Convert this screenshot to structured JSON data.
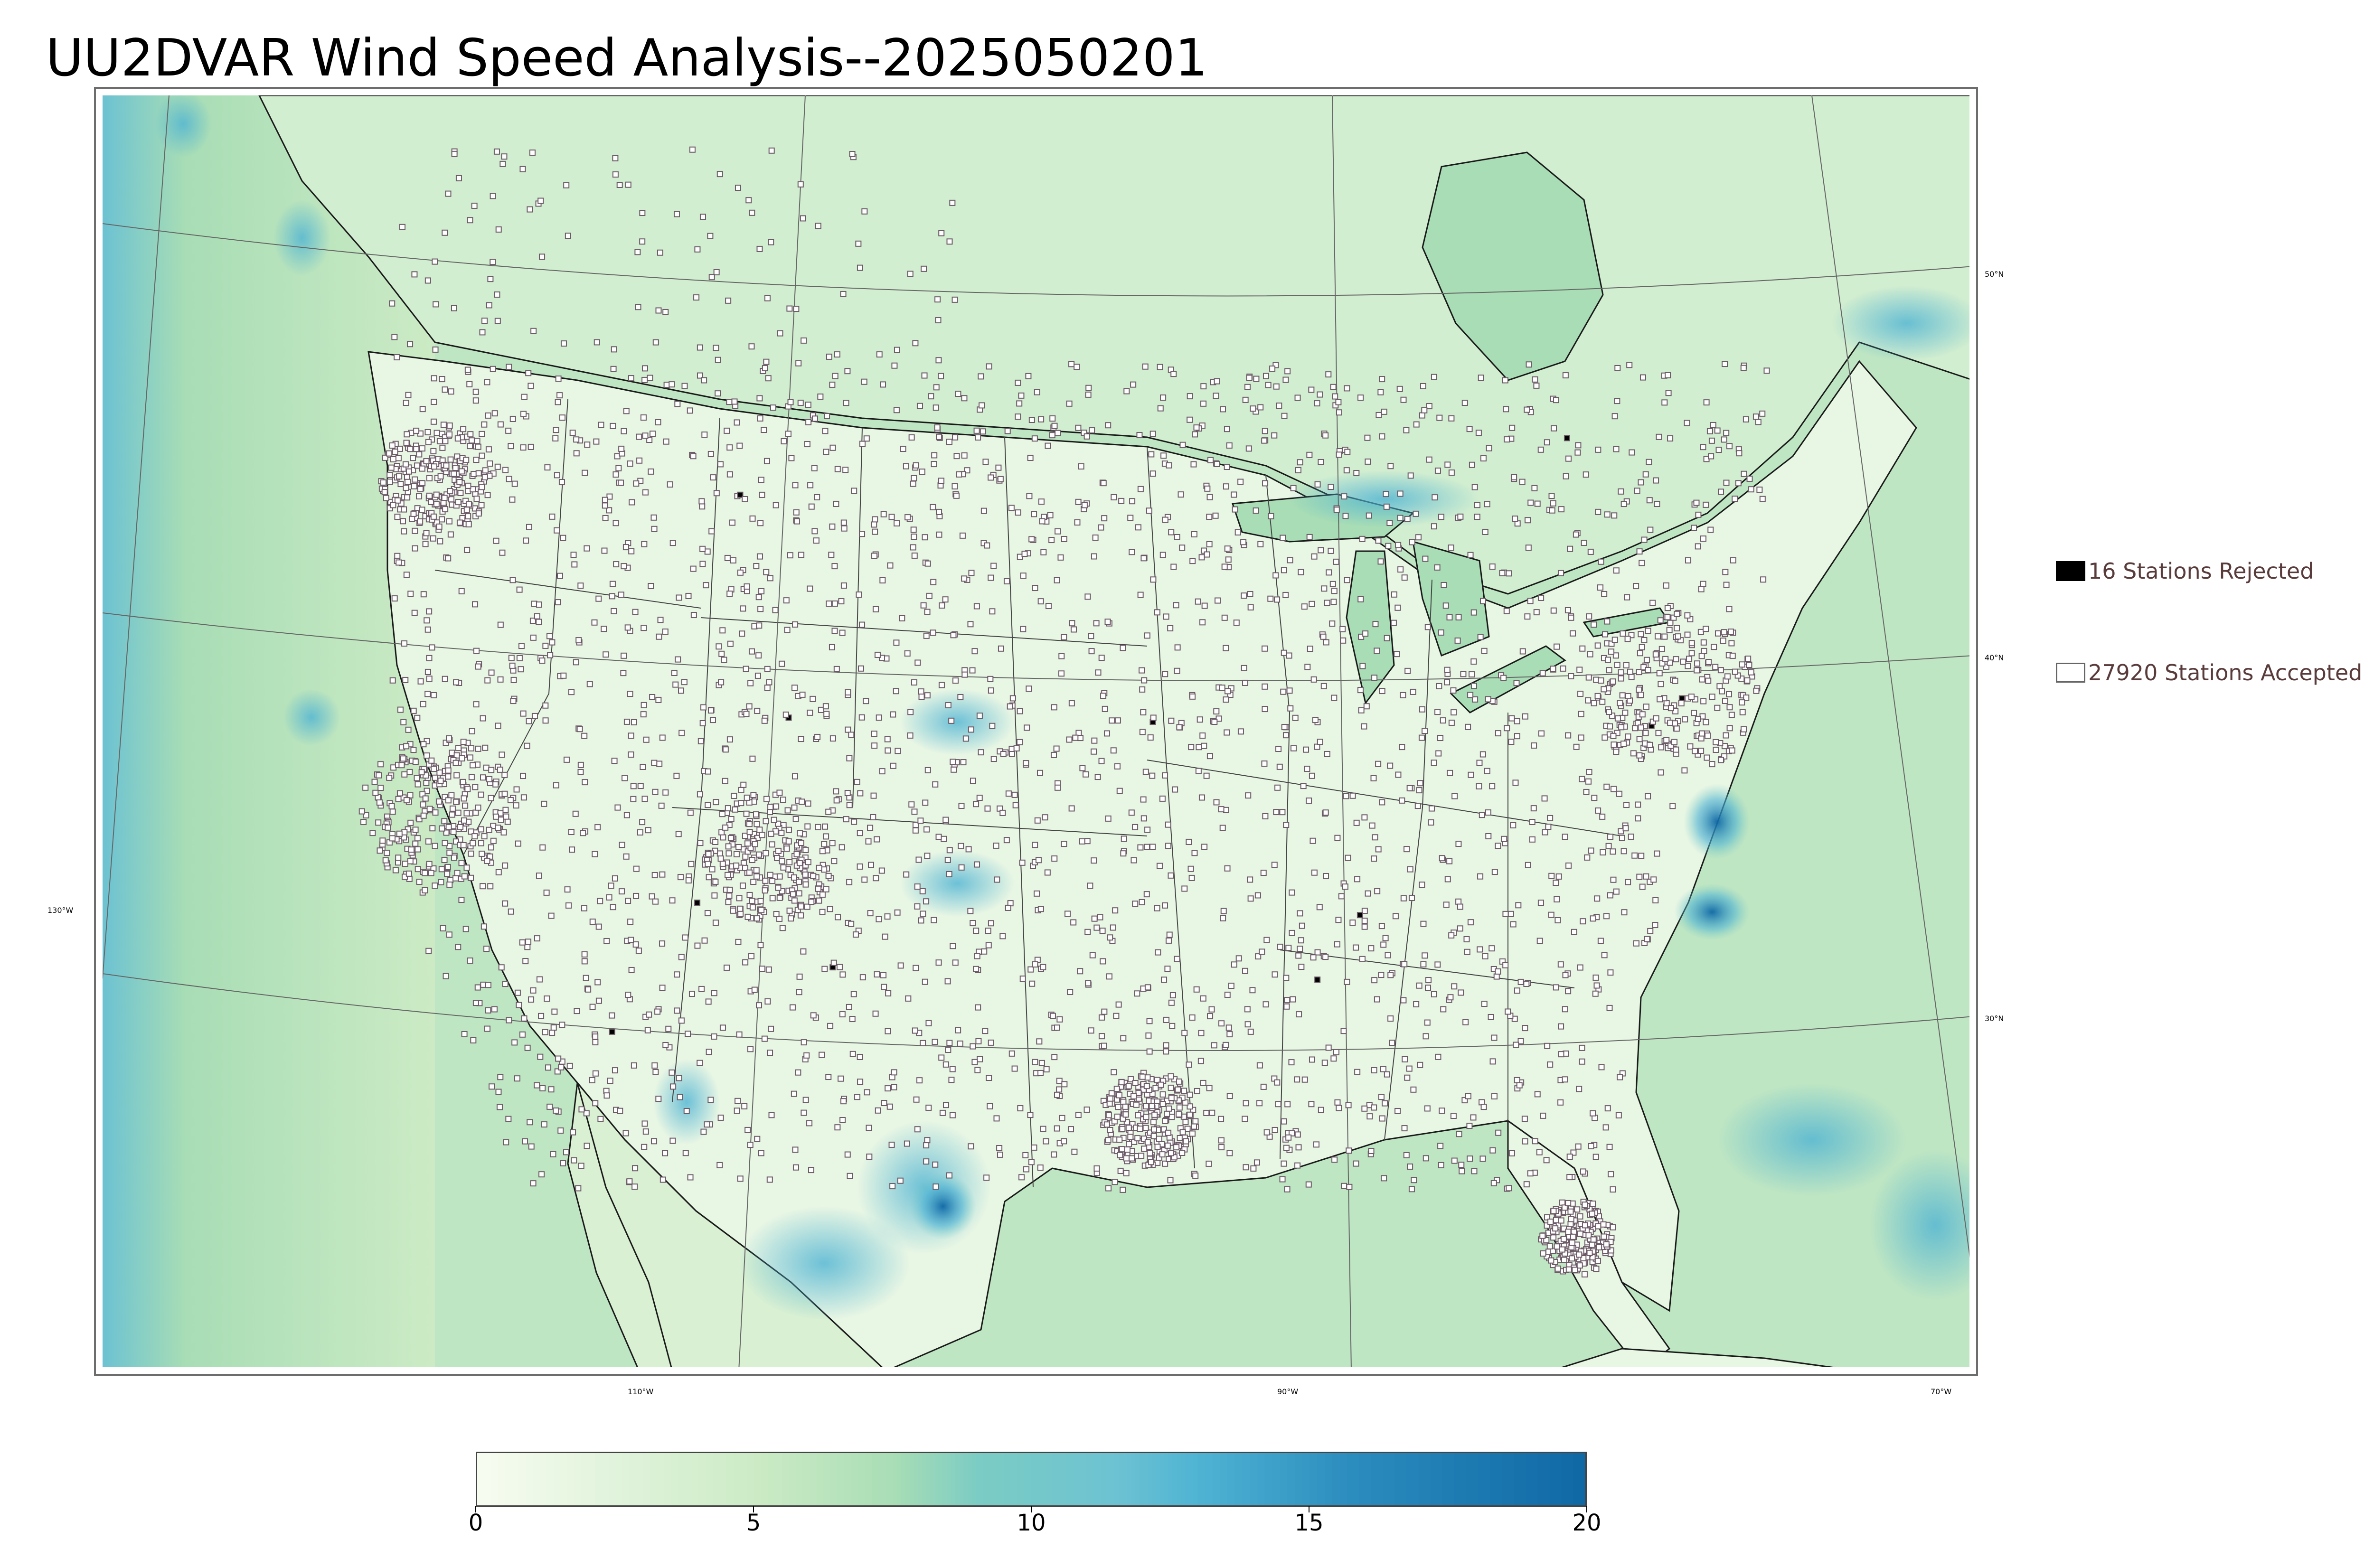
{
  "title": "UU2DVAR Wind Speed Analysis--2025050201",
  "map": {
    "longitude_labels": [
      "130°W",
      "110°W",
      "90°W",
      "70°W"
    ],
    "latitude_labels": [
      "50°N",
      "40°N",
      "30°N"
    ],
    "colors": {
      "ocean_base": "#aedcb5",
      "land_base": "#e5f5e0",
      "gust_blue": "#5ab4d0",
      "coastline": "#1a1a1a",
      "borders": "#333333",
      "gridlines": "#555555",
      "station_accepted": "#ffffff",
      "station_rejected": "#000000"
    }
  },
  "legend": {
    "rejected": {
      "count": 16,
      "label": "16 Stations Rejected",
      "swatch": "filled-black-square"
    },
    "accepted": {
      "count": 27920,
      "label": "27920 Stations Accepted",
      "swatch": "hollow-square"
    }
  },
  "colorbar": {
    "ticks": [
      "0",
      "5",
      "10",
      "15",
      "20"
    ],
    "range": [
      0,
      20
    ],
    "stops": [
      {
        "v": 0,
        "c": "#f7fcf0"
      },
      {
        "v": 2.5,
        "c": "#e0f3db"
      },
      {
        "v": 5,
        "c": "#ccebc5"
      },
      {
        "v": 7.5,
        "c": "#a8ddb5"
      },
      {
        "v": 9,
        "c": "#7bccc4"
      },
      {
        "v": 11.5,
        "c": "#6cc2d2"
      },
      {
        "v": 13,
        "c": "#4eb3d3"
      },
      {
        "v": 15.7,
        "c": "#2b8cbe"
      },
      {
        "v": 20,
        "c": "#0f67a4"
      }
    ]
  }
}
